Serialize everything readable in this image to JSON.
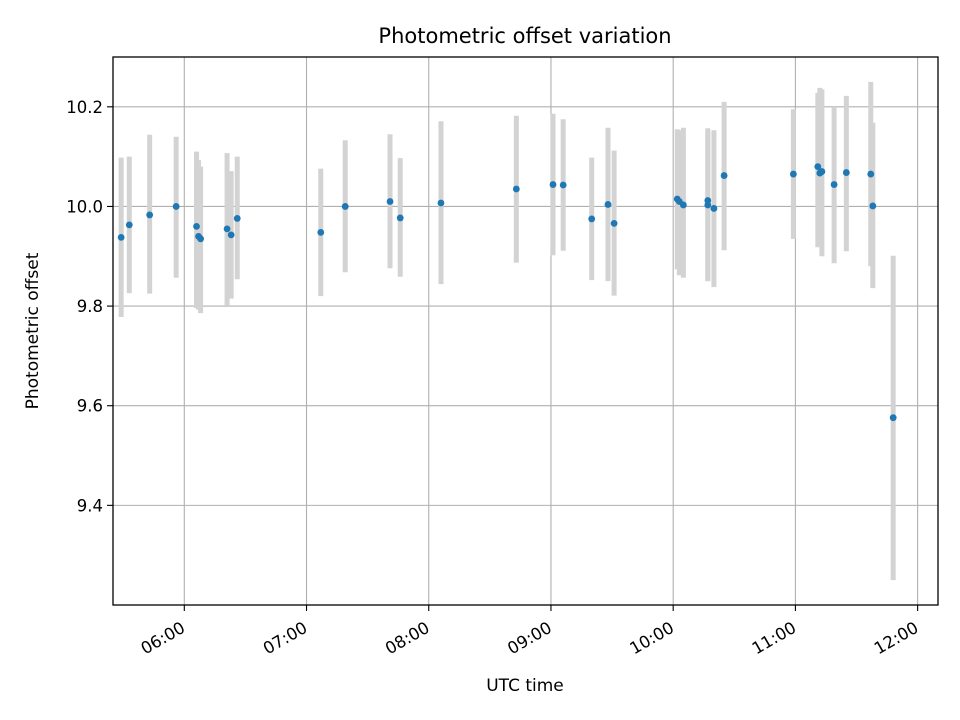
{
  "chart_data": {
    "type": "scatter",
    "title": "Photometric offset variation",
    "xlabel": "UTC time",
    "ylabel": "Photometric offset",
    "x_unit": "time-of-day",
    "xlim": [
      "05:25",
      "12:10"
    ],
    "ylim": [
      9.2,
      10.3
    ],
    "x_ticks": [
      "06:00",
      "07:00",
      "08:00",
      "09:00",
      "10:00",
      "11:00",
      "12:00"
    ],
    "y_ticks": [
      "9.4",
      "9.6",
      "9.8",
      "10.0",
      "10.2"
    ],
    "grid": true,
    "legend": "none",
    "colors": {
      "point": "#1f77b4",
      "errorbar": "#d3d3d3",
      "grid": "#b0b0b0"
    },
    "series": [
      {
        "points": [
          {
            "x": "05:29",
            "y": 9.938,
            "err_low": 9.778,
            "err_high": 10.098
          },
          {
            "x": "05:33",
            "y": 9.963,
            "err_low": 9.826,
            "err_high": 10.1
          },
          {
            "x": "05:43",
            "y": 9.983,
            "err_low": 9.825,
            "err_high": 10.144
          },
          {
            "x": "05:56",
            "y": 10.0,
            "err_low": 9.857,
            "err_high": 10.14
          },
          {
            "x": "06:06",
            "y": 9.96,
            "err_low": 9.796,
            "err_high": 10.11
          },
          {
            "x": "06:07",
            "y": 9.94,
            "err_low": 9.793,
            "err_high": 10.093
          },
          {
            "x": "06:08",
            "y": 9.935,
            "err_low": 9.786,
            "err_high": 10.08
          },
          {
            "x": "06:21",
            "y": 9.955,
            "err_low": 9.802,
            "err_high": 10.107
          },
          {
            "x": "06:23",
            "y": 9.943,
            "err_low": 9.815,
            "err_high": 10.071
          },
          {
            "x": "06:26",
            "y": 9.976,
            "err_low": 9.854,
            "err_high": 10.1
          },
          {
            "x": "07:07",
            "y": 9.948,
            "err_low": 9.82,
            "err_high": 10.076
          },
          {
            "x": "07:19",
            "y": 10.0,
            "err_low": 9.868,
            "err_high": 10.133
          },
          {
            "x": "07:41",
            "y": 10.01,
            "err_low": 9.876,
            "err_high": 10.145
          },
          {
            "x": "07:46",
            "y": 9.977,
            "err_low": 9.859,
            "err_high": 10.097
          },
          {
            "x": "08:06",
            "y": 10.007,
            "err_low": 9.844,
            "err_high": 10.171
          },
          {
            "x": "08:43",
            "y": 10.035,
            "err_low": 9.887,
            "err_high": 10.182
          },
          {
            "x": "09:01",
            "y": 10.044,
            "err_low": 9.902,
            "err_high": 10.186
          },
          {
            "x": "09:06",
            "y": 10.043,
            "err_low": 9.911,
            "err_high": 10.175
          },
          {
            "x": "09:20",
            "y": 9.975,
            "err_low": 9.852,
            "err_high": 10.098
          },
          {
            "x": "09:28",
            "y": 10.004,
            "err_low": 9.85,
            "err_high": 10.158
          },
          {
            "x": "09:31",
            "y": 9.966,
            "err_low": 9.821,
            "err_high": 10.112
          },
          {
            "x": "10:02",
            "y": 10.015,
            "err_low": 9.874,
            "err_high": 10.155
          },
          {
            "x": "10:03",
            "y": 10.01,
            "err_low": 9.862,
            "err_high": 10.153
          },
          {
            "x": "10:05",
            "y": 10.003,
            "err_low": 9.857,
            "err_high": 10.158
          },
          {
            "x": "10:17",
            "y": 10.012,
            "err_low": 9.85,
            "err_high": 10.157
          },
          {
            "x": "10:17",
            "y": 10.003,
            "err_low": 9.85,
            "err_high": 10.15
          },
          {
            "x": "10:20",
            "y": 9.996,
            "err_low": 9.838,
            "err_high": 10.153
          },
          {
            "x": "10:25",
            "y": 10.062,
            "err_low": 9.912,
            "err_high": 10.21
          },
          {
            "x": "10:59",
            "y": 10.065,
            "err_low": 9.935,
            "err_high": 10.195
          },
          {
            "x": "11:11",
            "y": 10.08,
            "err_low": 9.918,
            "err_high": 10.228
          },
          {
            "x": "11:12",
            "y": 10.067,
            "err_low": 9.92,
            "err_high": 10.238
          },
          {
            "x": "11:13",
            "y": 10.07,
            "err_low": 9.9,
            "err_high": 10.235
          },
          {
            "x": "11:19",
            "y": 10.044,
            "err_low": 9.886,
            "err_high": 10.2
          },
          {
            "x": "11:25",
            "y": 10.068,
            "err_low": 9.91,
            "err_high": 10.222
          },
          {
            "x": "11:37",
            "y": 10.065,
            "err_low": 9.88,
            "err_high": 10.25
          },
          {
            "x": "11:38",
            "y": 10.001,
            "err_low": 9.836,
            "err_high": 10.168
          },
          {
            "x": "11:48",
            "y": 9.576,
            "err_low": 9.25,
            "err_high": 9.901
          }
        ]
      }
    ]
  }
}
